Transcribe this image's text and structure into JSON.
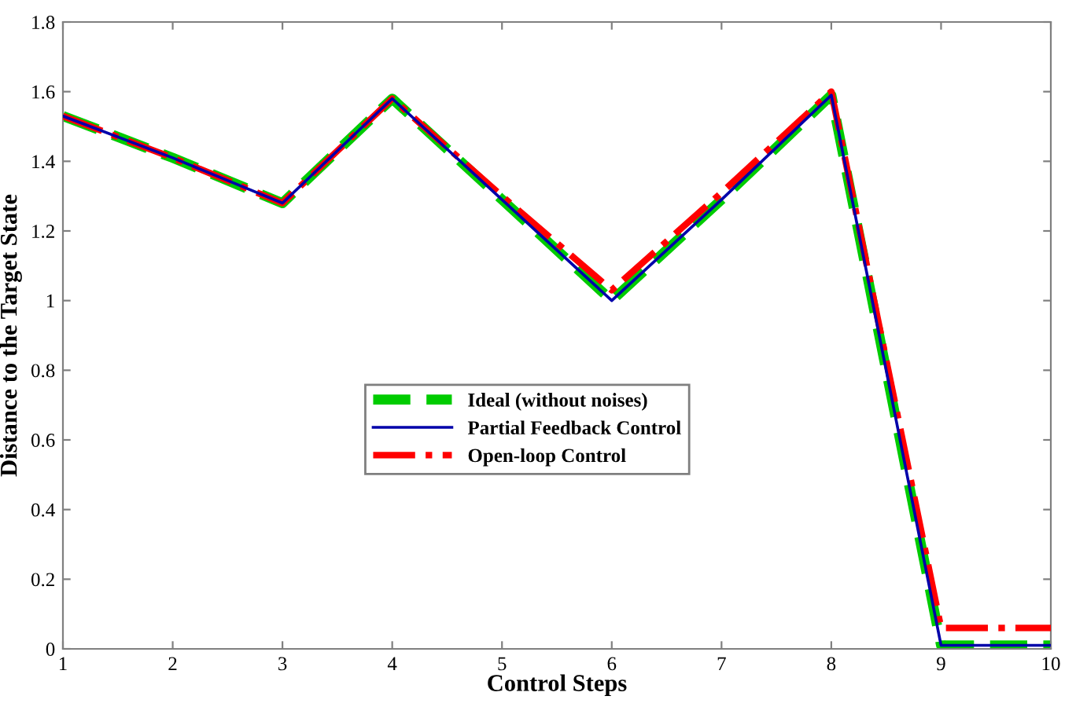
{
  "chart_data": {
    "type": "line",
    "xlabel": "Control Steps",
    "ylabel": "Distance to the Target State",
    "x": [
      1,
      2,
      3,
      4,
      5,
      6,
      7,
      8,
      9,
      10
    ],
    "series": [
      {
        "name": "Ideal (without noises)",
        "color": "#00cc00",
        "line_style": "dashed",
        "values": [
          1.53,
          1.41,
          1.28,
          1.58,
          1.29,
          1.0,
          1.29,
          1.59,
          0.01,
          0.01
        ]
      },
      {
        "name": "Partial Feedback Control",
        "color": "#0000aa",
        "line_style": "solid",
        "values": [
          1.53,
          1.41,
          1.28,
          1.58,
          1.29,
          1.0,
          1.29,
          1.59,
          0.01,
          0.01
        ]
      },
      {
        "name": "Open-loop Control",
        "color": "#ff0000",
        "line_style": "dashdot",
        "values": [
          1.53,
          1.41,
          1.28,
          1.58,
          1.3,
          1.03,
          1.31,
          1.6,
          0.06,
          0.06
        ]
      }
    ],
    "xlim": [
      1,
      10
    ],
    "xticks": [
      1,
      2,
      3,
      4,
      5,
      6,
      7,
      8,
      9,
      10
    ],
    "ylim": [
      0,
      1.8
    ],
    "yticks": [
      0,
      0.2,
      0.4,
      0.6,
      0.8,
      1,
      1.2,
      1.4,
      1.6,
      1.8
    ],
    "grid": false,
    "legend": "center",
    "marker": "none"
  }
}
